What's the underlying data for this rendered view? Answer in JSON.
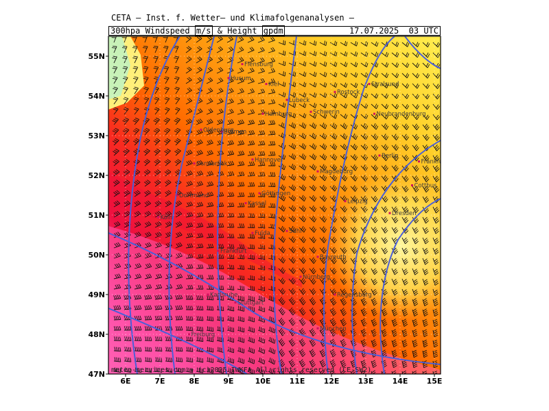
{
  "header": {
    "org": "CETA — Inst. f. Wetter— und Klimafolgenanalysen —",
    "product_parts": [
      "300hpa",
      "Windspeed",
      "m/s",
      "&",
      "Height",
      "gpdm"
    ],
    "datetime": "17.07.2025  03 UTC"
  },
  "axes": {
    "lat_labels": [
      "55N",
      "54N",
      "53N",
      "52N",
      "51N",
      "50N",
      "49N",
      "48N",
      "47N"
    ],
    "lon_labels": [
      "6E",
      "7E",
      "8E",
      "9E",
      "10E",
      "11E",
      "12E",
      "13E",
      "14E",
      "15E"
    ]
  },
  "cities": [
    "Flensburg",
    "Husum",
    "Kiel",
    "Rostock",
    "Stralsund",
    "Lübeck",
    "Hamburg",
    "Schwerin",
    "Neubrandenburg",
    "Bremen",
    "Oldenburg",
    "Osnabrück",
    "Hannover",
    "Magdeburg",
    "Berlin",
    "Frankfurt/O.",
    "Cottbus",
    "Dortmund",
    "Kassel",
    "Göttingen",
    "Leipzig",
    "Dresden",
    "Köln",
    "Fulda",
    "Suhl",
    "Frankfurt",
    "Bayreuth",
    "Nürnberg",
    "Regensburg",
    "Karlsruhe",
    "Stuttgart",
    "München",
    "Freiburg"
  ],
  "credit": "meteo-services.com + (c)2025 IWKFA All rights reserved (CE-SW2)",
  "colors": {
    "speed_low": "#c8f0c0",
    "speed_mid_low": "#fff26a",
    "speed_mid": "#ffb400",
    "speed_high": "#ff5a00",
    "speed_higher": "#f01030",
    "speed_max": "#ff5ab0",
    "height_contour": "#4a5fd8"
  }
}
